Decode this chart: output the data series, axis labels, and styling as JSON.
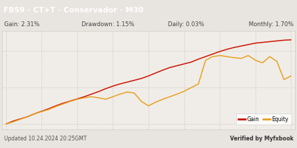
{
  "title": "FBS9 - CT+T - Conservador - M30",
  "title_bg_top": "#4a4a4a",
  "title_bg_bot": "#1a1a1a",
  "title_color": "#ffffff",
  "gain_label": "Gain: 2.31%",
  "drawdown_label": "Drawdown: 1.15%",
  "daily_label": "Daily: 0.03%",
  "monthly_label": "Monthly: 1.70%",
  "footer_left": "Updated 10.24.2024 20:25GMT",
  "footer_right": "Verified by Myfxbook",
  "chart_bg": "#f0ede8",
  "outer_bg": "#e8e4df",
  "grid_color": "#d0cbc4",
  "gain_color": "#cc1100",
  "equity_color": "#e8a020",
  "gain_x": [
    0,
    1,
    2,
    3,
    4,
    5,
    6,
    7,
    8,
    9,
    10,
    11,
    12,
    13,
    14,
    15,
    16,
    17,
    18,
    19,
    20,
    21,
    22,
    23,
    24,
    25,
    26,
    27,
    28,
    29,
    30,
    31,
    32,
    33,
    34,
    35,
    36,
    37,
    38,
    39,
    40
  ],
  "gain_y": [
    0.0,
    0.08,
    0.14,
    0.2,
    0.28,
    0.35,
    0.42,
    0.5,
    0.57,
    0.63,
    0.69,
    0.75,
    0.82,
    0.89,
    0.97,
    1.04,
    1.1,
    1.15,
    1.2,
    1.25,
    1.32,
    1.4,
    1.48,
    1.55,
    1.6,
    1.65,
    1.7,
    1.78,
    1.85,
    1.92,
    1.99,
    2.05,
    2.1,
    2.14,
    2.18,
    2.22,
    2.24,
    2.26,
    2.28,
    2.3,
    2.31
  ],
  "equity_x": [
    0,
    1,
    2,
    3,
    4,
    5,
    6,
    7,
    8,
    9,
    10,
    11,
    12,
    13,
    14,
    15,
    16,
    17,
    18,
    19,
    20,
    21,
    22,
    23,
    24,
    25,
    26,
    27,
    28,
    29,
    30,
    31,
    32,
    33,
    34,
    35,
    36,
    37,
    38,
    39,
    40
  ],
  "equity_y": [
    0.0,
    0.06,
    0.13,
    0.2,
    0.28,
    0.34,
    0.4,
    0.48,
    0.55,
    0.62,
    0.68,
    0.72,
    0.75,
    0.72,
    0.68,
    0.75,
    0.82,
    0.88,
    0.85,
    0.62,
    0.5,
    0.6,
    0.68,
    0.75,
    0.82,
    0.9,
    1.0,
    1.1,
    1.75,
    1.85,
    1.88,
    1.85,
    1.82,
    1.8,
    1.88,
    1.75,
    1.68,
    1.85,
    1.72,
    1.22,
    1.32
  ],
  "legend_gain": "Gain",
  "legend_equity": "Equity",
  "ylim_min": -0.15,
  "ylim_max": 2.55,
  "xlim_min": -0.5,
  "xlim_max": 40.5
}
